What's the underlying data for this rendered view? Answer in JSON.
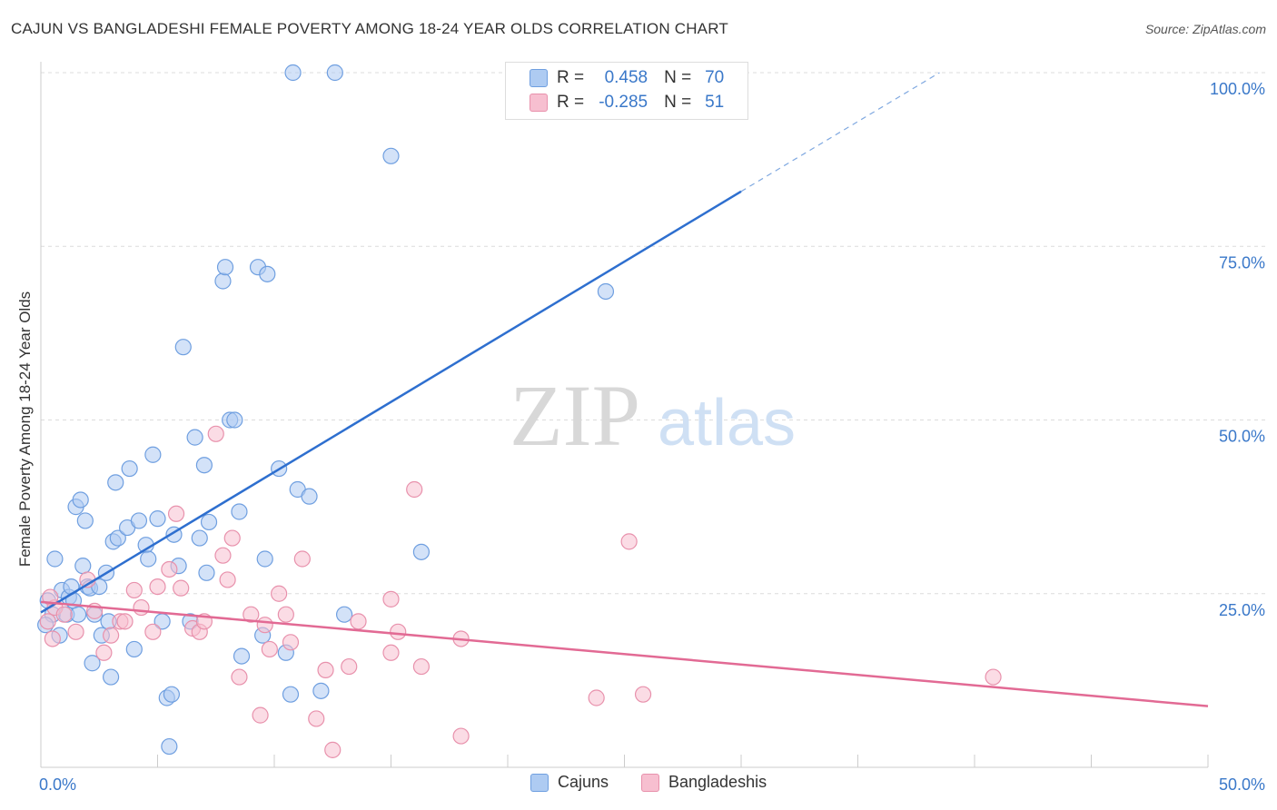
{
  "title": "CAJUN VS BANGLADESHI FEMALE POVERTY AMONG 18-24 YEAR OLDS CORRELATION CHART",
  "source": "Source: ZipAtlas.com",
  "watermark": {
    "zip": "ZIP",
    "atlas": "atlas"
  },
  "legend": {
    "r_label": "R =",
    "n_label": "N =",
    "rows": [
      {
        "r": "0.458",
        "n": "70",
        "color": "#aecbf2",
        "stroke": "#6f9fe0"
      },
      {
        "r": "-0.285",
        "n": "51",
        "color": "#f7bfd0",
        "stroke": "#e891ac"
      }
    ]
  },
  "bottom_legend": [
    {
      "label": "Cajuns",
      "color": "#aecbf2",
      "stroke": "#6f9fe0"
    },
    {
      "label": "Bangladeshis",
      "color": "#f7bfd0",
      "stroke": "#e891ac"
    }
  ],
  "chart_data": {
    "type": "scatter",
    "title": "CAJUN VS BANGLADESHI FEMALE POVERTY AMONG 18-24 YEAR OLDS CORRELATION CHART",
    "xlabel": "",
    "ylabel": "Female Poverty Among 18-24 Year Olds",
    "xlim": [
      0,
      50
    ],
    "ylim": [
      0,
      100
    ],
    "x_tick_labels": [
      "0.0%",
      "50.0%"
    ],
    "y_ticks": [
      25,
      50,
      75,
      100
    ],
    "y_tick_labels": [
      "25.0%",
      "50.0%",
      "75.0%",
      "100.0%"
    ],
    "grid": true,
    "series": [
      {
        "name": "Cajuns",
        "color": "#6f9fe0",
        "fill": "#aecbf2",
        "trend": {
          "x": [
            0,
            30
          ],
          "y": [
            22.3,
            82.9
          ],
          "dashed_to": [
            38.5,
            100
          ]
        },
        "points": [
          [
            0.3,
            24
          ],
          [
            0.5,
            22
          ],
          [
            0.6,
            30
          ],
          [
            0.8,
            19
          ],
          [
            0.9,
            25.5
          ],
          [
            1.1,
            22
          ],
          [
            1.2,
            24.5
          ],
          [
            1.3,
            26
          ],
          [
            1.4,
            24
          ],
          [
            1.5,
            37.5
          ],
          [
            1.6,
            22
          ],
          [
            1.7,
            38.5
          ],
          [
            1.8,
            29
          ],
          [
            1.9,
            35.5
          ],
          [
            2.0,
            26
          ],
          [
            2.1,
            25.8
          ],
          [
            2.2,
            15
          ],
          [
            2.3,
            22
          ],
          [
            2.5,
            26
          ],
          [
            2.6,
            19
          ],
          [
            2.8,
            28
          ],
          [
            2.9,
            21
          ],
          [
            3.0,
            13
          ],
          [
            3.1,
            32.5
          ],
          [
            3.2,
            41
          ],
          [
            3.3,
            33
          ],
          [
            3.7,
            34.5
          ],
          [
            3.8,
            43
          ],
          [
            4.0,
            17
          ],
          [
            4.2,
            35.5
          ],
          [
            4.5,
            32
          ],
          [
            4.6,
            30
          ],
          [
            4.8,
            45
          ],
          [
            5.0,
            35.8
          ],
          [
            5.2,
            21
          ],
          [
            5.4,
            10
          ],
          [
            5.5,
            3
          ],
          [
            5.6,
            10.5
          ],
          [
            5.7,
            33.5
          ],
          [
            5.9,
            29
          ],
          [
            6.1,
            60.5
          ],
          [
            6.4,
            21
          ],
          [
            6.6,
            47.5
          ],
          [
            6.8,
            33
          ],
          [
            7.0,
            43.5
          ],
          [
            7.1,
            28
          ],
          [
            7.2,
            35.3
          ],
          [
            7.8,
            70
          ],
          [
            7.9,
            72
          ],
          [
            8.1,
            50
          ],
          [
            8.3,
            50
          ],
          [
            8.5,
            36.8
          ],
          [
            8.6,
            16
          ],
          [
            9.3,
            72
          ],
          [
            9.5,
            19
          ],
          [
            9.6,
            30
          ],
          [
            9.7,
            71
          ],
          [
            10.2,
            43
          ],
          [
            10.5,
            16.5
          ],
          [
            10.7,
            10.5
          ],
          [
            11.0,
            40
          ],
          [
            11.5,
            39
          ],
          [
            12.0,
            11
          ],
          [
            10.8,
            100
          ],
          [
            12.6,
            100
          ],
          [
            13.0,
            22
          ],
          [
            15.0,
            88
          ],
          [
            16.3,
            31
          ],
          [
            24.2,
            68.5
          ],
          [
            0.2,
            20.5
          ]
        ]
      },
      {
        "name": "Bangladeshis",
        "color": "#e891ac",
        "fill": "#f7bfd0",
        "trend": {
          "x": [
            0,
            50
          ],
          "y": [
            23.8,
            8.8
          ]
        },
        "points": [
          [
            0.3,
            21
          ],
          [
            0.5,
            18.5
          ],
          [
            0.6,
            23
          ],
          [
            1.0,
            22
          ],
          [
            1.5,
            19.5
          ],
          [
            2.0,
            27
          ],
          [
            2.3,
            22.5
          ],
          [
            2.7,
            16.5
          ],
          [
            3.0,
            19
          ],
          [
            3.4,
            21
          ],
          [
            3.6,
            21
          ],
          [
            4.0,
            25.5
          ],
          [
            4.3,
            23
          ],
          [
            4.8,
            19.5
          ],
          [
            5.0,
            26
          ],
          [
            5.5,
            28.5
          ],
          [
            5.8,
            36.5
          ],
          [
            6.0,
            25.8
          ],
          [
            6.5,
            20
          ],
          [
            6.8,
            19.5
          ],
          [
            7.0,
            21
          ],
          [
            7.5,
            48
          ],
          [
            7.8,
            30.5
          ],
          [
            8.0,
            27
          ],
          [
            8.2,
            33
          ],
          [
            8.5,
            13
          ],
          [
            9.0,
            22
          ],
          [
            9.4,
            7.5
          ],
          [
            9.6,
            20.5
          ],
          [
            9.8,
            17
          ],
          [
            10.2,
            25
          ],
          [
            10.5,
            22
          ],
          [
            10.7,
            18
          ],
          [
            11.2,
            30
          ],
          [
            11.8,
            7
          ],
          [
            12.2,
            14
          ],
          [
            12.5,
            2.5
          ],
          [
            13.2,
            14.5
          ],
          [
            13.6,
            21
          ],
          [
            15.0,
            24.2
          ],
          [
            15.3,
            19.5
          ],
          [
            15.0,
            16.5
          ],
          [
            16.0,
            40
          ],
          [
            16.3,
            14.5
          ],
          [
            18.0,
            18.5
          ],
          [
            18.0,
            4.5
          ],
          [
            23.8,
            10
          ],
          [
            25.2,
            32.5
          ],
          [
            25.8,
            10.5
          ],
          [
            40.8,
            13
          ],
          [
            0.4,
            24.5
          ]
        ]
      }
    ]
  }
}
